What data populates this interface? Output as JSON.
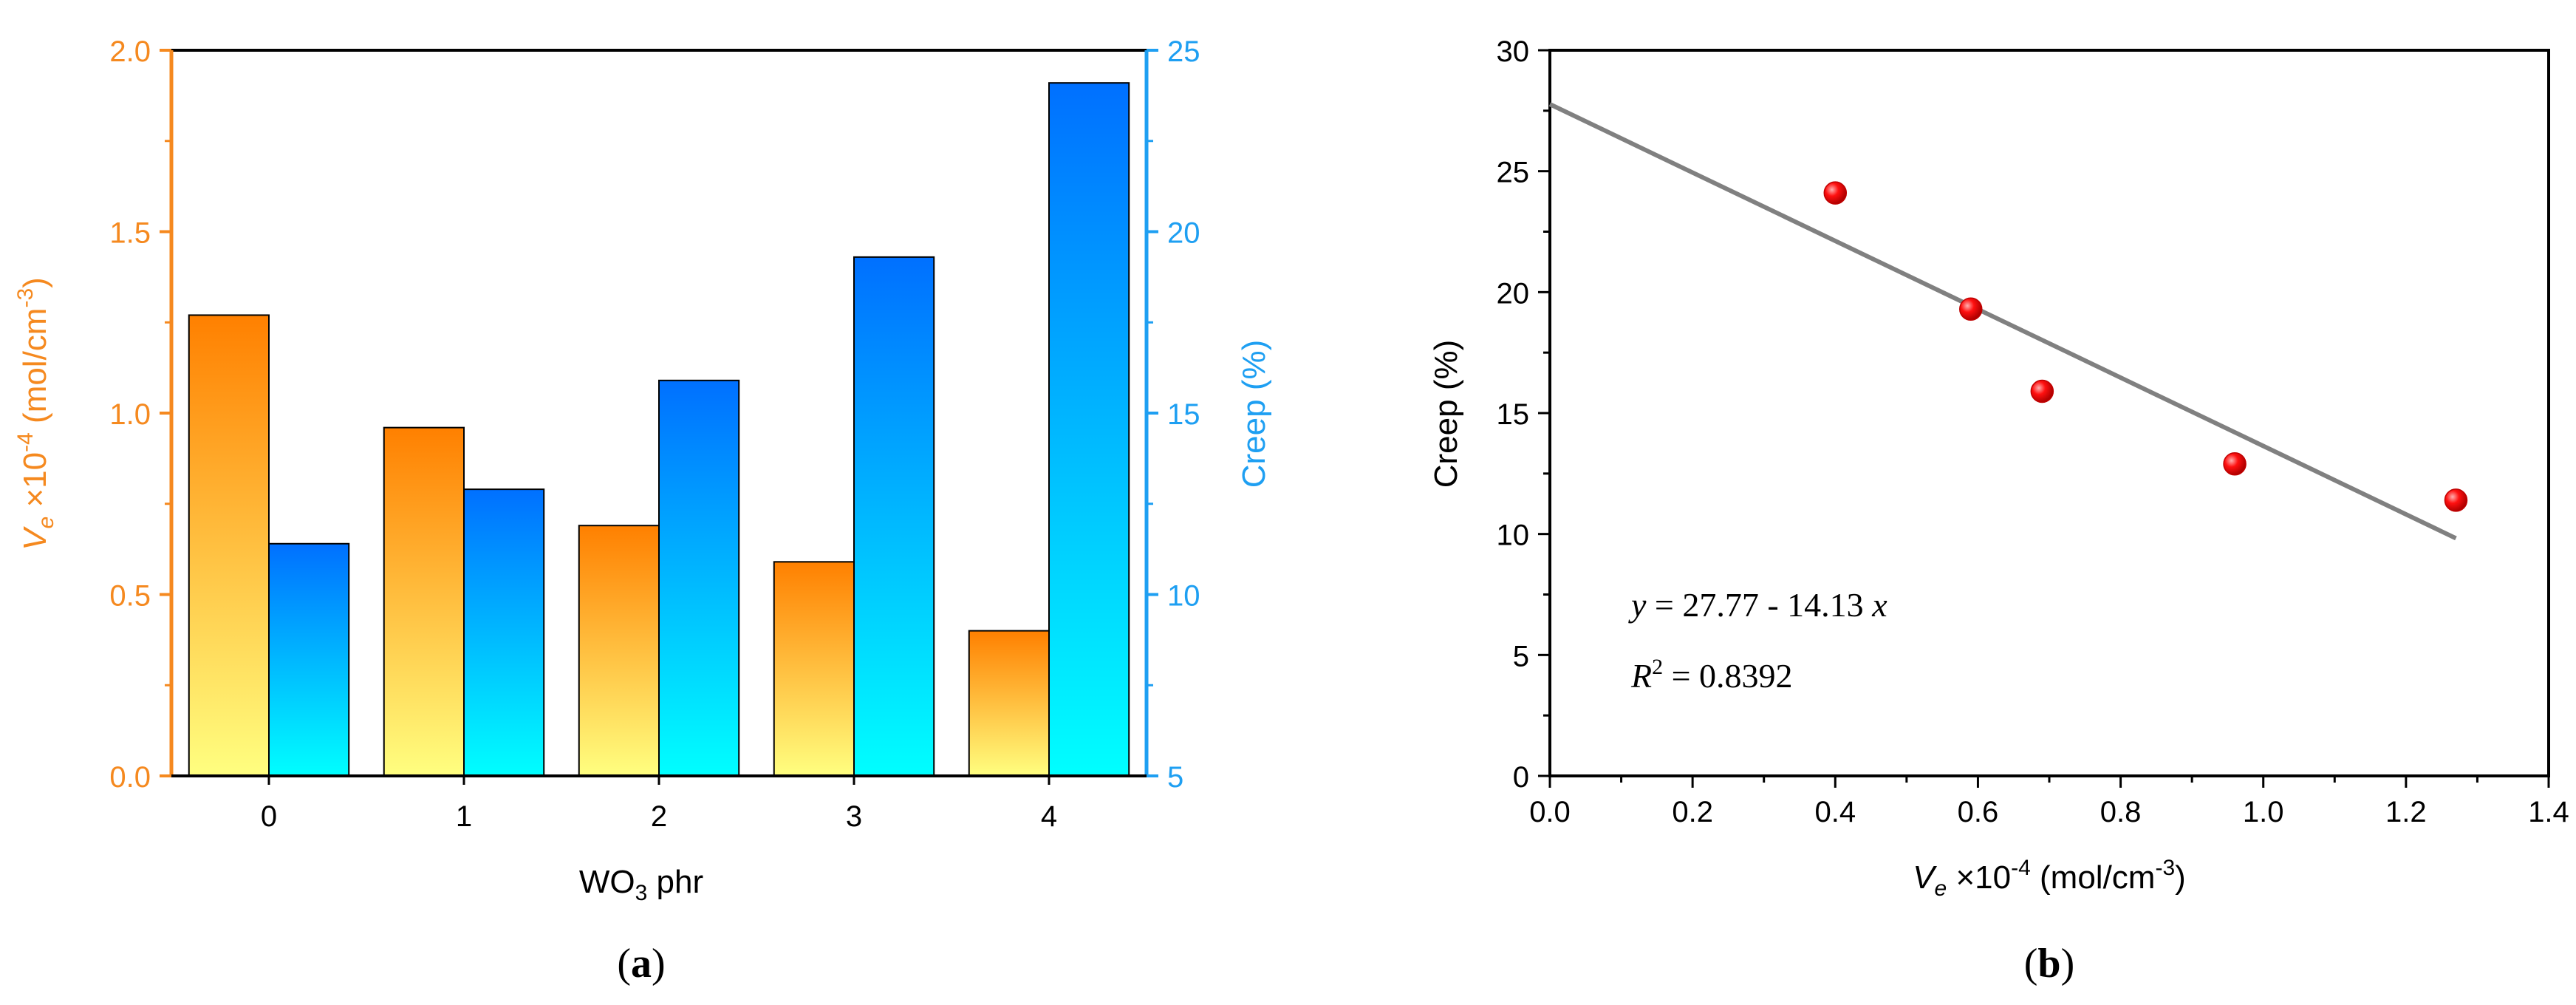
{
  "colors": {
    "orange_top": "#ff8000",
    "orange_bottom": "#ffff80",
    "blue_top": "#0070ff",
    "blue_bottom": "#00ffff",
    "left_axis": "#f5891f",
    "right_axis": "#1e9ff2",
    "point": "#ee0000",
    "fit_line": "#808080"
  },
  "chart_data": [
    {
      "panel": "(a)",
      "type": "bar",
      "xlabel_main": "WO",
      "xlabel_sub": "3",
      "xlabel_rest": " phr",
      "categories": [
        "0",
        "1",
        "2",
        "3",
        "4"
      ],
      "series": [
        {
          "name": "Ve x10-4 (mol/cm-3)",
          "axis": "left",
          "values": [
            1.27,
            0.96,
            0.69,
            0.59,
            0.4
          ]
        },
        {
          "name": "Creep (%)",
          "axis": "right",
          "values": [
            11.4,
            12.9,
            15.9,
            19.3,
            24.1
          ]
        }
      ],
      "ylabel_left": {
        "v": "V",
        "sub": "e",
        "mid": " ×10",
        "sup": "-4",
        "unit": " (mol/cm",
        "sup2": "-3",
        "close": ")"
      },
      "ylabel_right": "Creep (%)",
      "ylim_left": [
        0,
        2.0
      ],
      "ylim_right": [
        5,
        25
      ],
      "yticks_left": [
        "0.0",
        "0.5",
        "1.0",
        "1.5",
        "2.0"
      ],
      "yticks_right": [
        "5",
        "10",
        "15",
        "20",
        "25"
      ]
    },
    {
      "panel": "(b)",
      "type": "scatter",
      "x": [
        0.4,
        0.59,
        0.69,
        0.96,
        1.27
      ],
      "y": [
        24.1,
        19.3,
        15.9,
        12.9,
        11.4
      ],
      "fit": {
        "intercept": 27.77,
        "slope": -14.13,
        "x_range": [
          0.0,
          1.27
        ]
      },
      "equation": {
        "y": "y",
        "eq": " = 27.77 - 14.13 ",
        "x": "x"
      },
      "r2": {
        "r": "R",
        "sup": "2",
        "eq": " = 0.8392"
      },
      "ylabel": "Creep (%)",
      "xlabel": {
        "v": "V",
        "sub": "e",
        "mid": " ×10",
        "sup": "-4",
        "unit": " (mol/cm",
        "sup2": "-3",
        "close": ")"
      },
      "xlim": [
        0.0,
        1.4
      ],
      "ylim": [
        0,
        30
      ],
      "xticks": [
        "0.0",
        "0.2",
        "0.4",
        "0.6",
        "0.8",
        "1.0",
        "1.2",
        "1.4"
      ],
      "yticks": [
        "0",
        "5",
        "10",
        "15",
        "20",
        "25",
        "30"
      ]
    }
  ],
  "labels": {
    "a": {
      "open": "(",
      "letter": "a",
      "close": ")"
    },
    "b": {
      "open": "(",
      "letter": "b",
      "close": ")"
    }
  }
}
